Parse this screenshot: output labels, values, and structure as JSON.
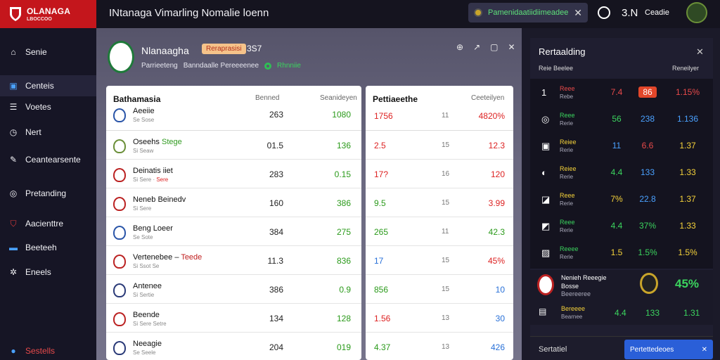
{
  "app": {
    "logo_name": "OLANAGA",
    "logo_sub": "LBOCCOO",
    "title": "INtanaga Vimarling   Nomalie   loenn"
  },
  "topbar": {
    "notice_text": "Pamenidaatiidiimeadeeeh",
    "time": "3.N",
    "user": "Ceadie"
  },
  "sidebar": {
    "items": [
      {
        "label": "Senie",
        "icon": "home-icon"
      },
      {
        "label": "Centeis",
        "icon": "monitor-icon"
      },
      {
        "label": "Voetes",
        "icon": "list-icon"
      },
      {
        "label": "Nert",
        "icon": "clock-icon"
      },
      {
        "label": "Ceantearsente",
        "icon": "pen-icon"
      },
      {
        "label": "Pretanding",
        "icon": "target-icon"
      },
      {
        "label": "Aacienttre",
        "icon": "shield-icon"
      },
      {
        "label": "Beeteeh",
        "icon": "image-icon"
      },
      {
        "label": "Eneels",
        "icon": "gear-icon"
      },
      {
        "label": "Sestells",
        "icon": "user-icon"
      }
    ]
  },
  "team": {
    "name": "Nlanaagha",
    "badge": "Reraprasisi",
    "num": "3S7",
    "meta_1": "Parrieeteng",
    "meta_2": "Banndaalle  Pereeeenee",
    "meta_3": "Rhnniie"
  },
  "left_panel": {
    "title": "Bathamasia",
    "col1": "Benned",
    "col2": "Seanideyen",
    "rows": [
      {
        "name": "Aeeiie",
        "sub": "Se Sose",
        "v1": "263",
        "v2": "1080",
        "crest": "#2a55a8"
      },
      {
        "name": "Oseehs",
        "hl": "Stege",
        "sub": "Si Seaw",
        "v1": "01.5",
        "v2": "136",
        "crest": "#6a8f38"
      },
      {
        "name": "Deinatis iiet",
        "sub": "Si Sere",
        "sub_hl": "Sere",
        "v1": "283",
        "v2": "0.15",
        "crest": "#b22"
      },
      {
        "name": "Neneb Beinedv",
        "sub": "Si Sere",
        "v1": "160",
        "v2": "386",
        "crest": "#b22"
      },
      {
        "name": "Beng Loeer",
        "sub": "Se Sote",
        "v1": "384",
        "v2": "275",
        "crest": "#2a55a8"
      },
      {
        "name": "Vertenebee",
        "hl_red": "Teede",
        "sub": "Si Ssot Se",
        "v1": "11.3",
        "v2": "836",
        "crest": "#b22"
      },
      {
        "name": "Antenee",
        "sub": "Si Sertie",
        "v1": "386",
        "v2": "0.9",
        "crest": "#2a3a78"
      },
      {
        "name": "Beende",
        "sub": "Si Sere Setre",
        "v1": "134",
        "v2": "128",
        "crest": "#b22"
      },
      {
        "name": "Neeagie",
        "sub": "Se Seele",
        "v1": "204",
        "v2": "019",
        "crest": "#2a3a78"
      }
    ]
  },
  "right_panel": {
    "title": "Pettiaeethe",
    "col": "Ceeteilyen",
    "rows": [
      {
        "a": "1756",
        "b": "11",
        "c": "4820%",
        "ca": "red",
        "cc": "red"
      },
      {
        "a": "2.5",
        "b": "15",
        "c": "12.3",
        "ca": "red",
        "cc": "red"
      },
      {
        "a": "17?",
        "b": "16",
        "c": "120",
        "ca": "red",
        "cc": "red"
      },
      {
        "a": "9.5",
        "b": "15",
        "c": "3.99",
        "ca": "green",
        "cc": "red"
      },
      {
        "a": "265",
        "b": "11",
        "c": "42.3",
        "ca": "green",
        "cc": "green"
      },
      {
        "a": "17",
        "b": "15",
        "c": "45%",
        "ca": "blue",
        "cc": "red"
      },
      {
        "a": "856",
        "b": "15",
        "c": "10",
        "ca": "green",
        "cc": "blue"
      },
      {
        "a": "1.56",
        "b": "13",
        "c": "30",
        "ca": "red",
        "cc": "blue"
      },
      {
        "a": "4.37",
        "b": "13",
        "c": "426",
        "ca": "green",
        "cc": "blue"
      }
    ]
  },
  "standings": {
    "title": "Rertaalding",
    "sub_left": "Reie   Beelee",
    "sub_right": "Reneilyer",
    "rows": [
      {
        "ix": "1",
        "n1": "Reee",
        "n2": "Rebe",
        "n1c": "#e84a4a",
        "p1": "7.4",
        "p1c": "#e84a4a",
        "p2": "86",
        "pill": true,
        "p3": "1.15%",
        "p3c": "#e84a4a"
      },
      {
        "ix": "◎",
        "n1": "Reee",
        "n2": "Rerie",
        "n1c": "#3bd45e",
        "p1": "56",
        "p1c": "#3bd45e",
        "p2": "238",
        "p2c": "#4aa1ff",
        "p3": "1.136",
        "p3c": "#4aa1ff"
      },
      {
        "ix": "▣",
        "n1": "Reiee",
        "n2": "Rerie",
        "n1c": "#f5d23a",
        "p1": "11",
        "p1c": "#4aa1ff",
        "p2": "6.6",
        "p2c": "#e84a4a",
        "p3": "1.37"
      },
      {
        "ix": "◐",
        "n1": "Reiee",
        "n2": "Rerie",
        "n1c": "#f5d23a",
        "p1": "4.4",
        "p1c": "#3bd45e",
        "p2": "133",
        "p2c": "#4aa1ff",
        "p3": "1.33"
      },
      {
        "ix": "◪",
        "n1": "Reee",
        "n2": "Rerie",
        "n1c": "#f5d23a",
        "p1": "7%",
        "p1c": "#f5d23a",
        "p2": "22.8",
        "p2c": "#4aa1ff",
        "p3": "1.37"
      },
      {
        "ix": "◩",
        "n1": "Reee",
        "n2": "Rerie",
        "n1c": "#3bd45e",
        "p1": "4.4",
        "p1c": "#3bd45e",
        "p2": "37%",
        "p2c": "#3bd45e",
        "p3": "1.33"
      },
      {
        "ix": "▨",
        "n1": "Reeee",
        "n2": "Rerie",
        "n1c": "#3bd45e",
        "p1": "1.5",
        "p1c": "#f5d23a",
        "p2": "1.5%",
        "p2c": "#3bd45e",
        "p3": "1.5%"
      }
    ],
    "featured": {
      "name": "Nenieh Reeegie",
      "line2": "Bosse",
      "line3": "Beereeree",
      "value": "45%",
      "r2_name": "Bereeee",
      "r2_sub": "Bearnee",
      "r2_p1": "4.4",
      "r2_p2": "133",
      "r2_p3": "1.31"
    },
    "foot_left": "Sertatiel",
    "foot_btn": "Pertettedeoes"
  }
}
